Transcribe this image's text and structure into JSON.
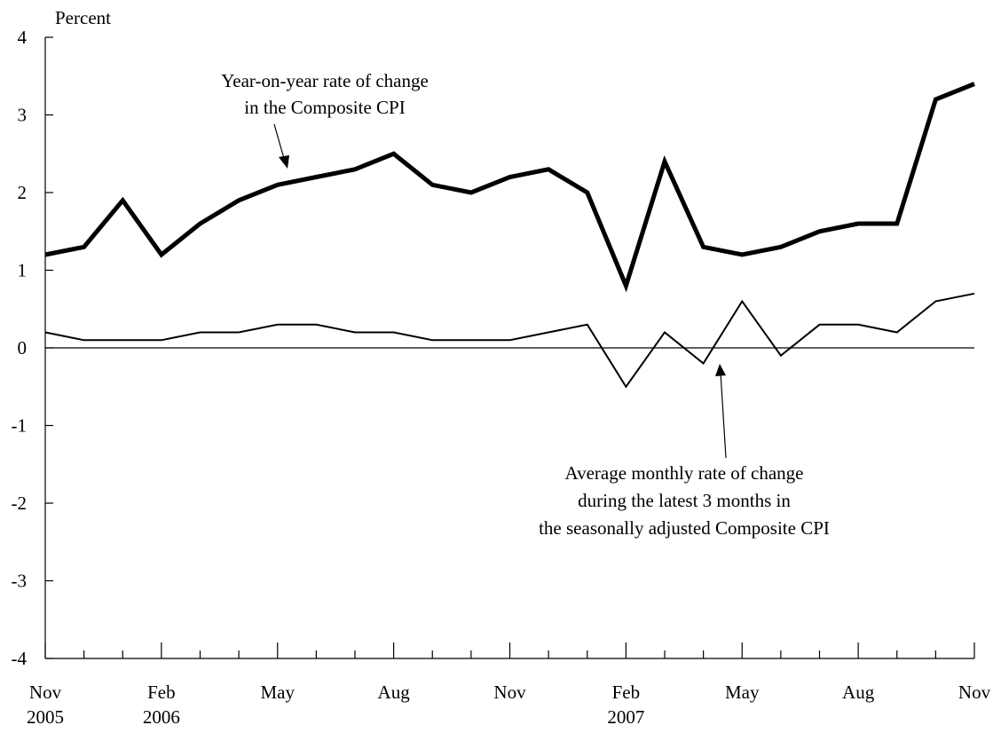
{
  "chart_data": {
    "type": "line",
    "ylabel": "Percent",
    "ylim": [
      -4,
      4
    ],
    "yticks": [
      4,
      3,
      2,
      1,
      0,
      -1,
      -2,
      -3,
      -4
    ],
    "x": [
      "Nov 2005",
      "Dec 2005",
      "Jan 2006",
      "Feb 2006",
      "Mar 2006",
      "Apr 2006",
      "May 2006",
      "Jun 2006",
      "Jul 2006",
      "Aug 2006",
      "Sep 2006",
      "Oct 2006",
      "Nov 2006",
      "Dec 2006",
      "Jan 2007",
      "Feb 2007",
      "Mar 2007",
      "Apr 2007",
      "May 2007",
      "Jun 2007",
      "Jul 2007",
      "Aug 2007",
      "Sep 2007",
      "Oct 2007",
      "Nov 2007"
    ],
    "xtick_labels": [
      {
        "month": "Nov",
        "year": "2005"
      },
      {
        "month": "Feb",
        "year": "2006"
      },
      {
        "month": "May",
        "year": ""
      },
      {
        "month": "Aug",
        "year": ""
      },
      {
        "month": "Nov",
        "year": ""
      },
      {
        "month": "Feb",
        "year": "2007"
      },
      {
        "month": "May",
        "year": ""
      },
      {
        "month": "Aug",
        "year": ""
      },
      {
        "month": "Nov",
        "year": ""
      }
    ],
    "series": [
      {
        "values": [
          1.2,
          1.3,
          1.9,
          1.2,
          1.6,
          1.9,
          2.1,
          2.2,
          2.3,
          2.5,
          2.1,
          2.0,
          2.2,
          2.3,
          2.0,
          0.8,
          2.4,
          1.3,
          1.2,
          1.3,
          1.5,
          1.6,
          1.6,
          3.2,
          3.4
        ],
        "color": "#000000",
        "style": "thick"
      },
      {
        "values": [
          0.2,
          0.1,
          0.1,
          0.1,
          0.2,
          0.2,
          0.3,
          0.3,
          0.2,
          0.2,
          0.1,
          0.1,
          0.1,
          0.2,
          0.3,
          -0.5,
          0.2,
          -0.2,
          0.6,
          -0.1,
          0.3,
          0.3,
          0.2,
          0.6,
          0.7
        ],
        "color": "#000000",
        "style": "thin"
      }
    ],
    "annotations": [
      {
        "lines": [
          "Year-on-year rate of change",
          "in the Composite CPI"
        ],
        "target_series": 0
      },
      {
        "lines": [
          "Average monthly rate of change",
          "during the latest 3 months in",
          "the seasonally adjusted Composite CPI"
        ],
        "target_series": 1
      }
    ],
    "grid": false,
    "zero_line": true,
    "legend": "none"
  }
}
